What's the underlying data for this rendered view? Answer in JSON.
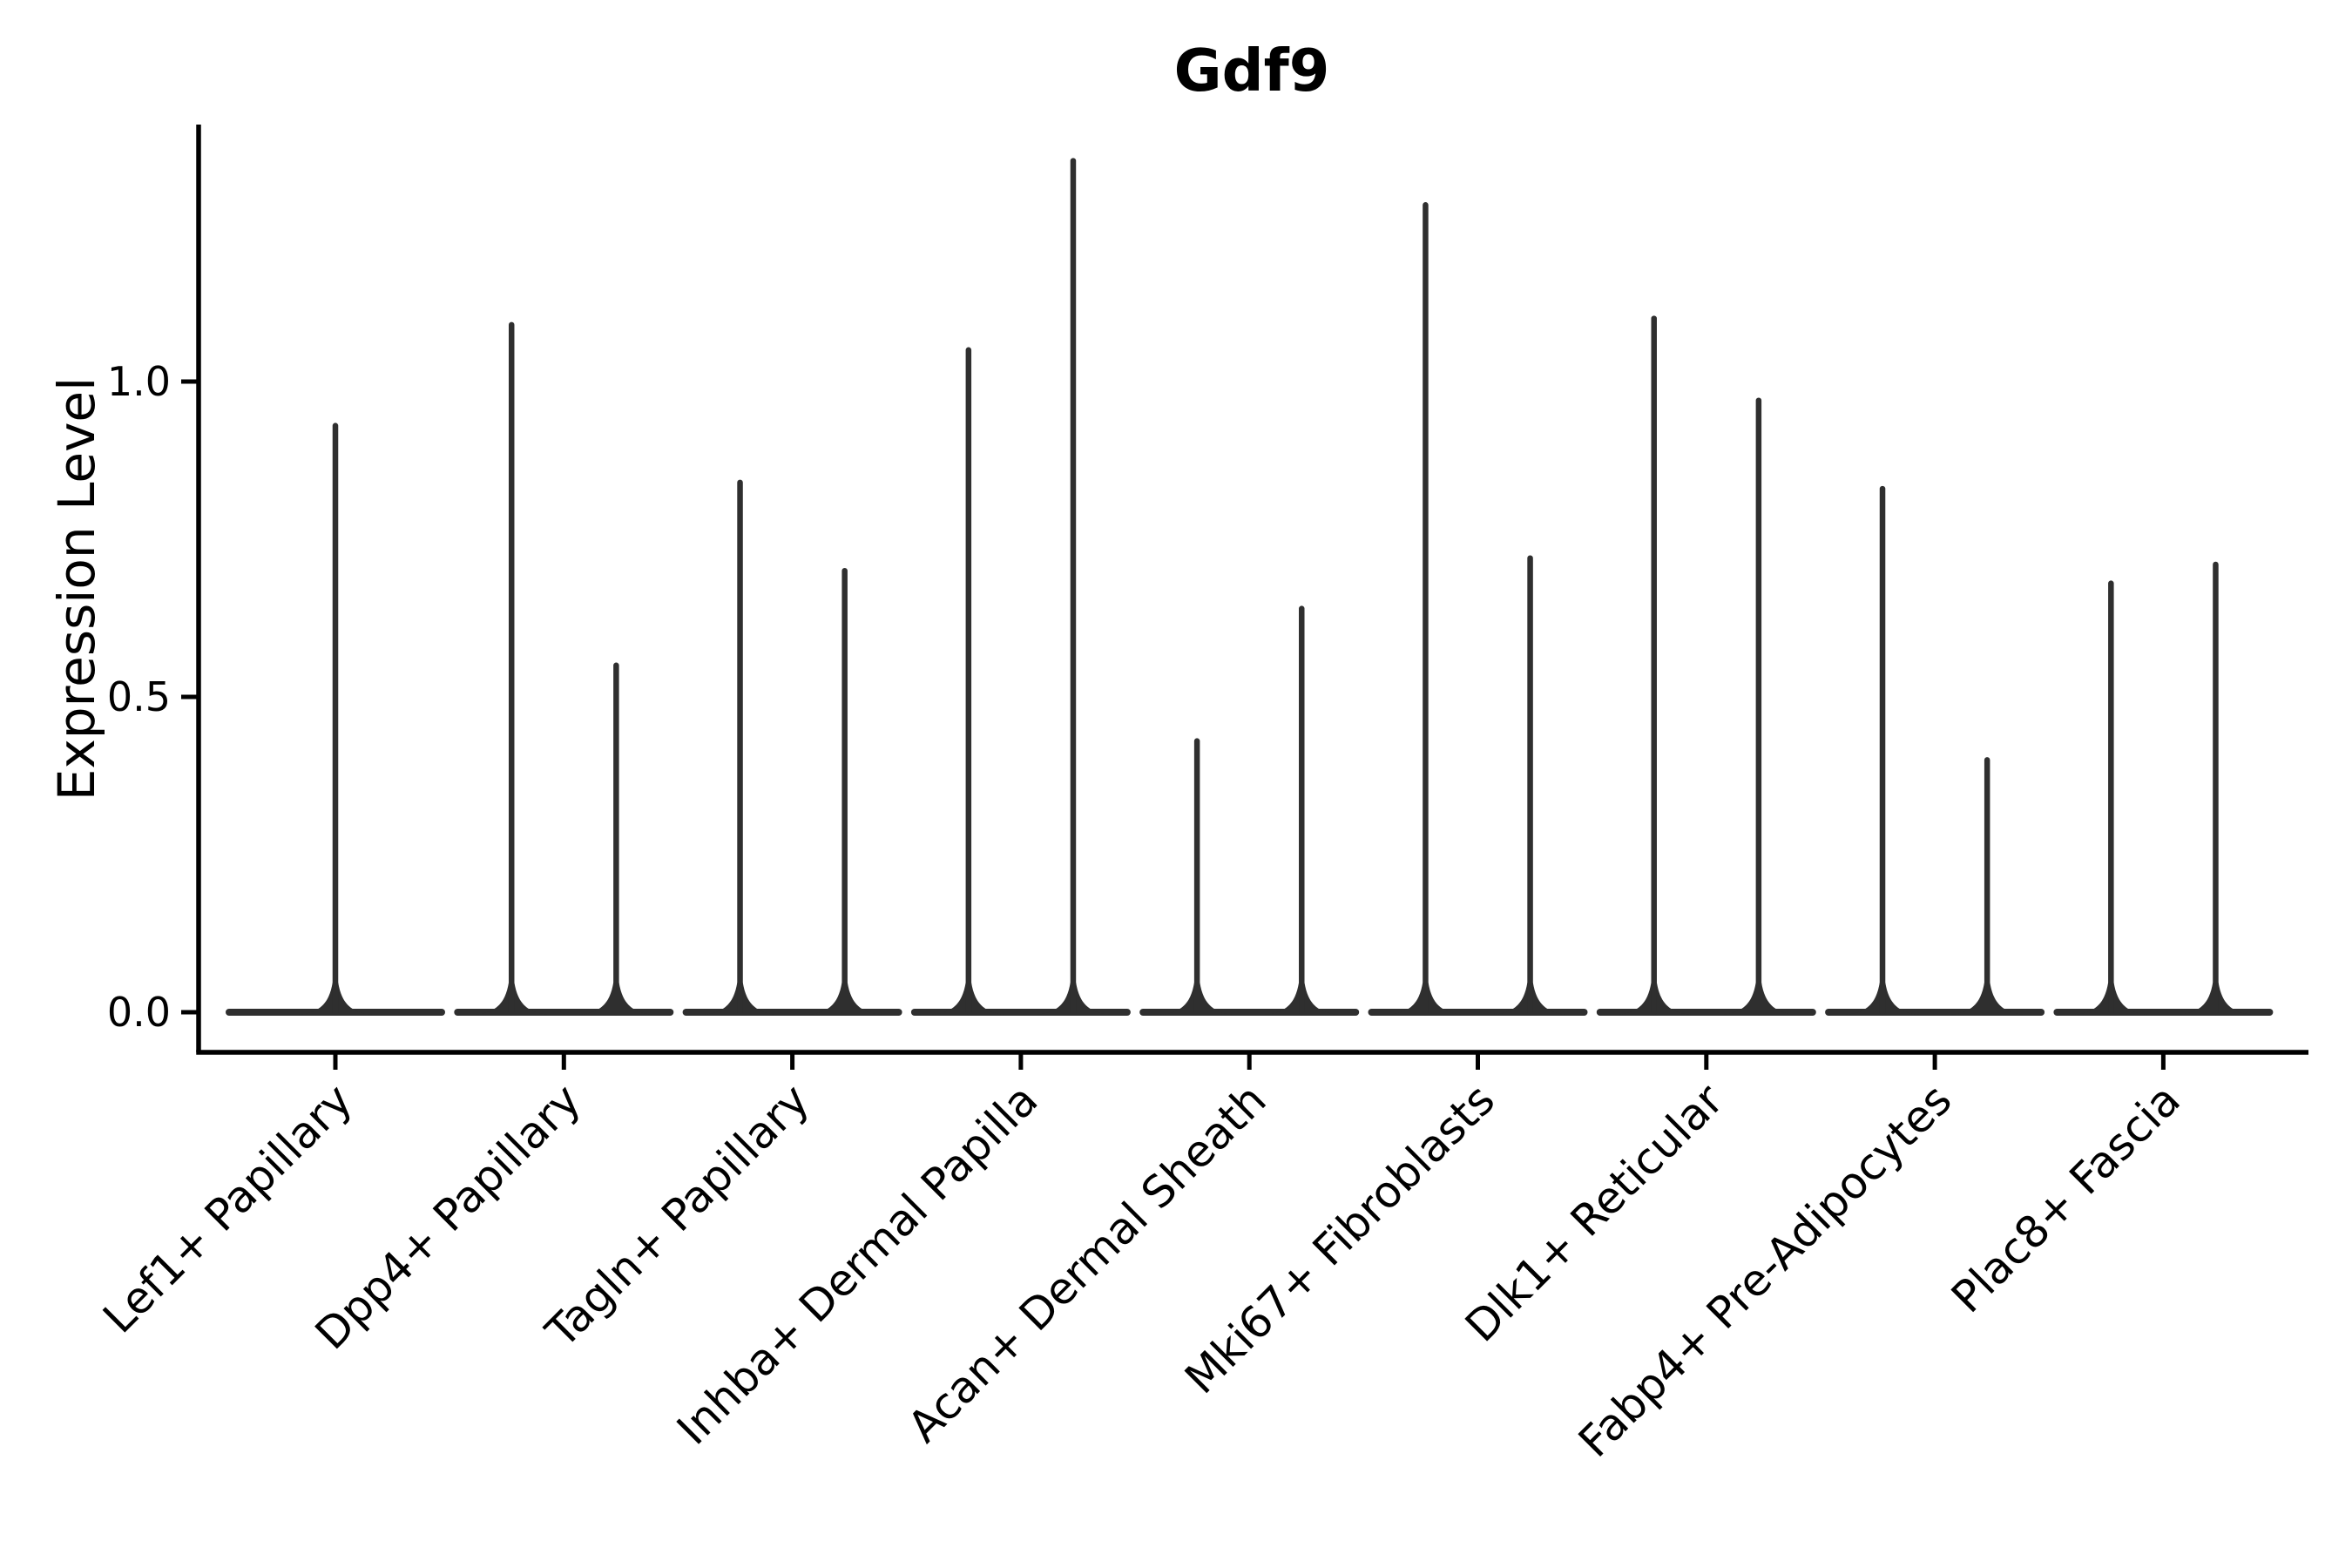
{
  "title": "Gdf9",
  "ylabel": "Expression Level",
  "chart_data": {
    "type": "violin",
    "title": "Gdf9",
    "xlabel": "",
    "ylabel": "Expression Level",
    "grid": false,
    "legend_position": "none",
    "ylim": [
      0,
      1.41
    ],
    "ytick_labels": [
      "0.0",
      "0.5",
      "1.0"
    ],
    "ytick_values": [
      0.0,
      0.5,
      1.0
    ],
    "categories": [
      "Lef1+ Papillary",
      "Dpp4+ Papillary",
      "Tagln+ Papillary",
      "Inhba+ Dermal Papilla",
      "Acan+ Dermal Sheath",
      "Mki67+ Fibroblasts",
      "Dlk1+ Reticular",
      "Fabp4+ Pre-Adipocytes",
      "Plac8+ Fascia"
    ],
    "x_tick_rotation_deg": 45,
    "violin_description": "Each violin collapses to a wide flat base at expression 0 with a thin spike reaching the maximum expression; category 1 has a single centered spike, all other categories have two side-by-side spikes.",
    "violins": [
      {
        "category": "Lef1+ Papillary",
        "spikes": [
          {
            "offset": 0.0,
            "max": 0.93
          }
        ]
      },
      {
        "category": "Dpp4+ Papillary",
        "spikes": [
          {
            "offset": -0.229,
            "max": 1.09
          },
          {
            "offset": 0.229,
            "max": 0.55
          }
        ]
      },
      {
        "category": "Tagln+ Papillary",
        "spikes": [
          {
            "offset": -0.229,
            "max": 0.84
          },
          {
            "offset": 0.229,
            "max": 0.7
          }
        ]
      },
      {
        "category": "Inhba+ Dermal Papilla",
        "spikes": [
          {
            "offset": -0.229,
            "max": 1.05
          },
          {
            "offset": 0.229,
            "max": 1.35
          }
        ]
      },
      {
        "category": "Acan+ Dermal Sheath",
        "spikes": [
          {
            "offset": -0.229,
            "max": 0.43
          },
          {
            "offset": 0.229,
            "max": 0.64
          }
        ]
      },
      {
        "category": "Mki67+ Fibroblasts",
        "spikes": [
          {
            "offset": -0.229,
            "max": 1.28
          },
          {
            "offset": 0.229,
            "max": 0.72
          }
        ]
      },
      {
        "category": "Dlk1+ Reticular",
        "spikes": [
          {
            "offset": -0.229,
            "max": 1.1
          },
          {
            "offset": 0.229,
            "max": 0.97
          }
        ]
      },
      {
        "category": "Fabp4+ Pre-Adipocytes",
        "spikes": [
          {
            "offset": -0.229,
            "max": 0.83
          },
          {
            "offset": 0.229,
            "max": 0.4
          }
        ]
      },
      {
        "category": "Plac8+ Fascia",
        "spikes": [
          {
            "offset": -0.229,
            "max": 0.68
          },
          {
            "offset": 0.229,
            "max": 0.71
          }
        ]
      }
    ],
    "baseline_value": 0.0,
    "colors": {
      "violin": "#2f2f2f",
      "axis": "#000000",
      "text": "#000000",
      "background": "#ffffff"
    }
  }
}
